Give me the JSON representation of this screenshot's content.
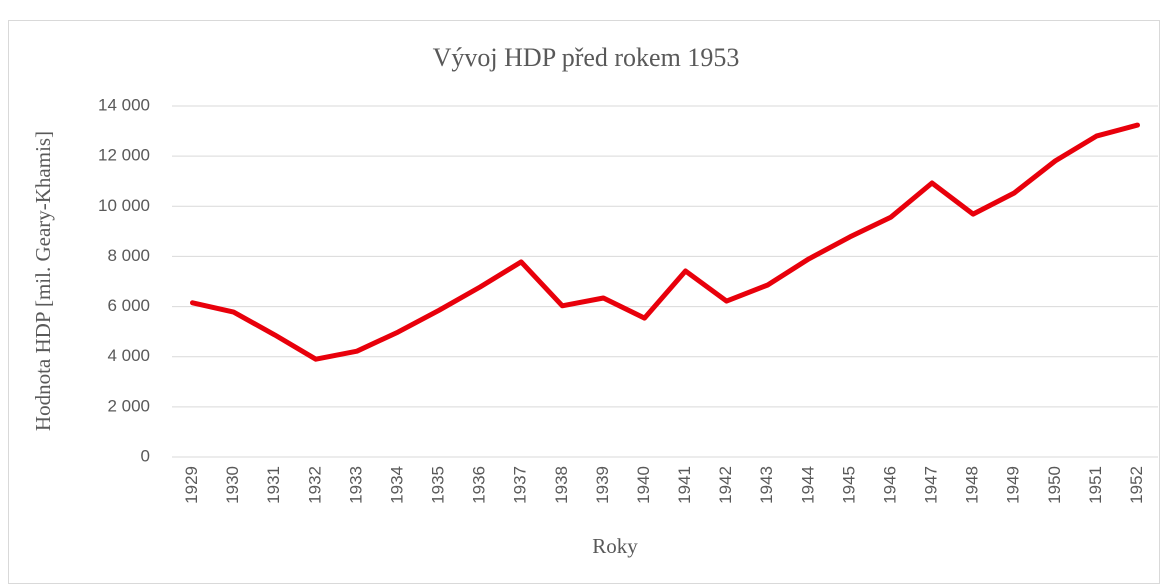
{
  "chart_data": {
    "type": "line",
    "title": "Vývoj HDP před rokem 1953",
    "x_label": "Roky",
    "y_label": "Hodnota HDP [mil. Geary-Khamis]",
    "categories": [
      "1929",
      "1930",
      "1931",
      "1932",
      "1933",
      "1934",
      "1935",
      "1936",
      "1937",
      "1938",
      "1939",
      "1940",
      "1941",
      "1942",
      "1943",
      "1944",
      "1945",
      "1946",
      "1947",
      "1948",
      "1949",
      "1950",
      "1951",
      "1952"
    ],
    "series": [
      {
        "name": "HDP",
        "color": "#e8000b",
        "values": [
          6150,
          5780,
          4870,
          3900,
          4220,
          4980,
          5850,
          6780,
          7780,
          6030,
          6340,
          5540,
          7420,
          6220,
          6860,
          7900,
          8780,
          9570,
          10930,
          9690,
          10530,
          11810,
          12800,
          13240
        ]
      }
    ],
    "ylim": [
      0,
      14000
    ],
    "yticks": [
      0,
      {
        "value": 2000,
        "label": "2 000"
      },
      {
        "value": 4000,
        "label": "4 000"
      },
      {
        "value": 6000,
        "label": "6 000"
      },
      {
        "value": 8000,
        "label": "8 000"
      },
      {
        "value": 10000,
        "label": "10 000"
      },
      {
        "value": 12000,
        "label": "12 000"
      },
      {
        "value": 14000,
        "label": "14 000"
      }
    ],
    "grid": true
  }
}
